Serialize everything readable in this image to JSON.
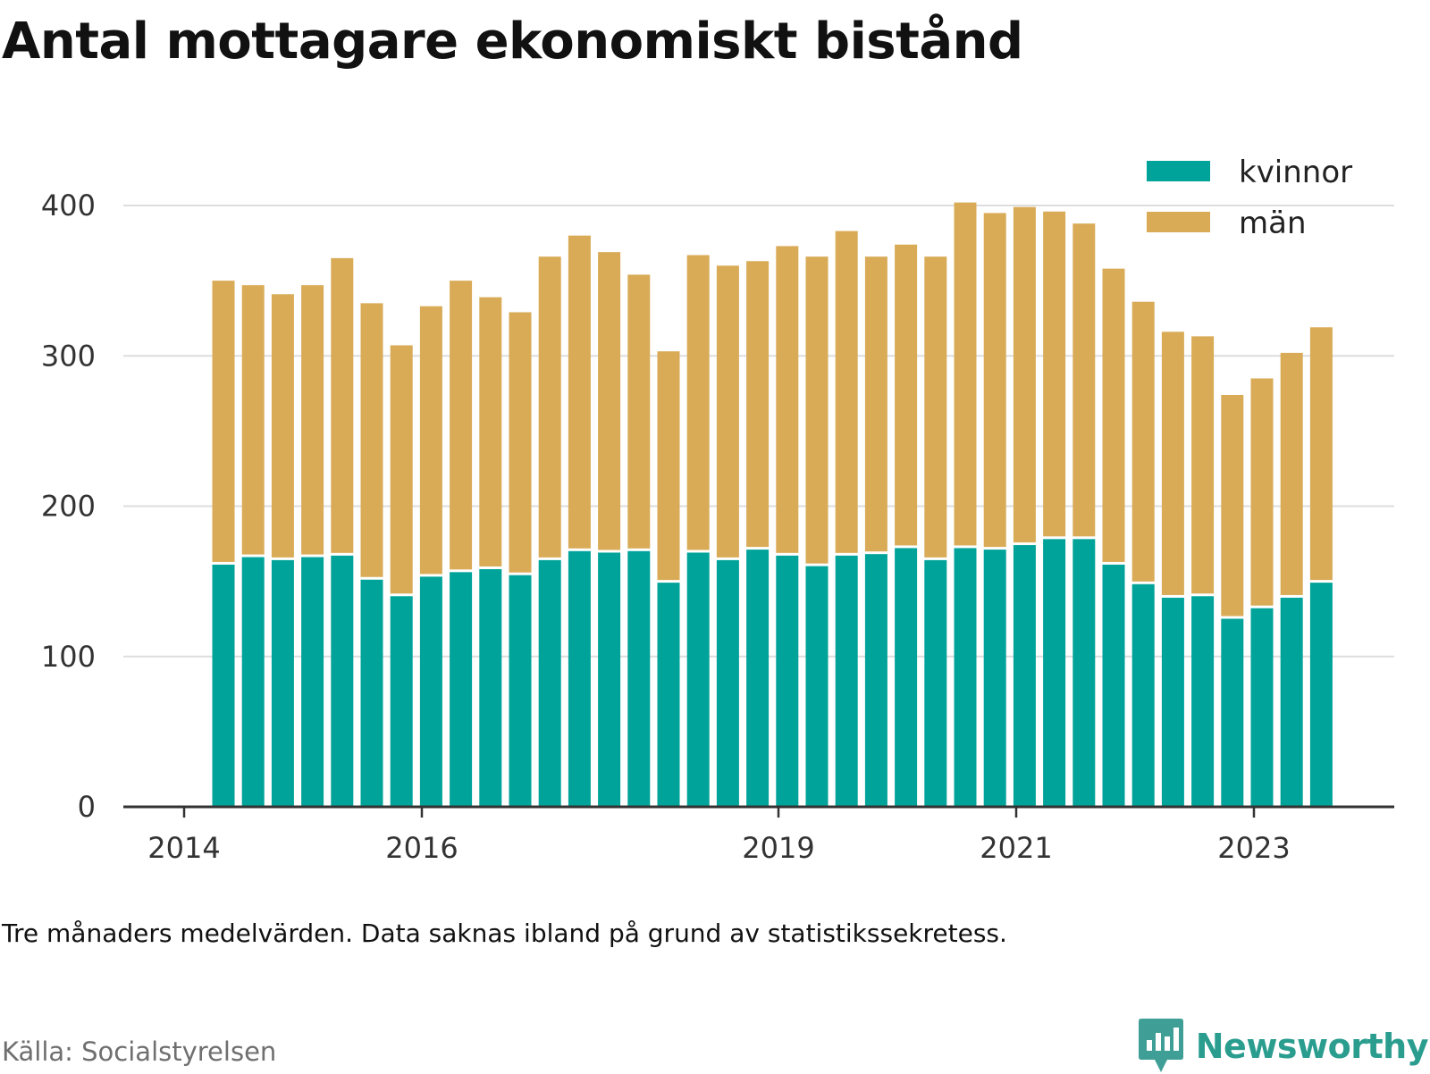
{
  "title": "Antal mottagare ekonomiskt bistånd",
  "note": "Tre månaders medelvärden. Data saknas ibland på grund av statistikssekretess.",
  "source": "Källa: Socialstyrelsen",
  "brand": {
    "name": "Newsworthy",
    "icon": "newsworthy-logo-icon",
    "color": "#2a9d8f"
  },
  "colors": {
    "kvinnor": "#00a399",
    "man": "#d9ab57",
    "grid": "#dddddd",
    "axis": "#333333",
    "text": "#333333"
  },
  "chart_data": {
    "type": "bar",
    "stacked": true,
    "ylim": [
      0,
      400
    ],
    "yticks": [
      0,
      100,
      200,
      300,
      400
    ],
    "xticks": [
      "2014",
      "2016",
      "2019",
      "2021",
      "2023"
    ],
    "grid": true,
    "legend_position": "top-right",
    "series": [
      {
        "name": "kvinnor",
        "color": "#00a399",
        "values": [
          162,
          167,
          165,
          167,
          168,
          152,
          141,
          154,
          157,
          159,
          155,
          165,
          171,
          170,
          171,
          150,
          170,
          165,
          172,
          168,
          161,
          168,
          169,
          173,
          165,
          173,
          172,
          175,
          179,
          179,
          162,
          149,
          140,
          141,
          126,
          133,
          140,
          150
        ]
      },
      {
        "name": "män",
        "color": "#d9ab57",
        "values": [
          188,
          180,
          176,
          180,
          197,
          183,
          166,
          179,
          193,
          180,
          174,
          201,
          209,
          199,
          183,
          153,
          197,
          195,
          191,
          205,
          205,
          215,
          197,
          201,
          201,
          229,
          223,
          224,
          217,
          209,
          196,
          187,
          176,
          172,
          148,
          152,
          162,
          169
        ]
      }
    ]
  }
}
